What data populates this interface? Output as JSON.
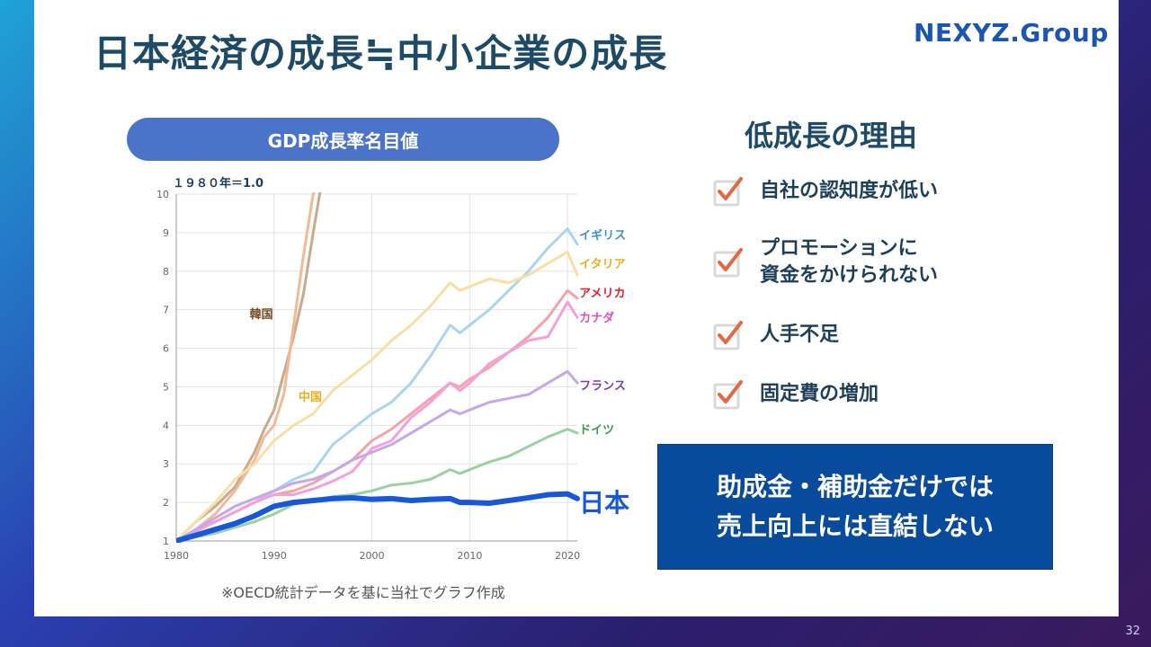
{
  "title": "日本経済の成長≒中小企業の成長",
  "logo": "NEXYZ.Group",
  "page_number": "32",
  "chart_pill": "GDP成長率名目値",
  "source_note": "※OECD統計データを基に当社でグラフ作成",
  "reasons_title": "低成長の理由",
  "reasons": [
    "自社の認知度が低い",
    "プロモーションに\n資金をかけられない",
    "人手不足",
    "固定費の増加"
  ],
  "note_box": "助成金・補助金だけでは\n売上向上には直結しない",
  "colors": {
    "title": "#1d4a66",
    "logo": "#1a55b0",
    "pill": "#4b73c9",
    "note_box": "#084a9b",
    "check": "#e06a45"
  },
  "icons": [
    "checkbox-checked-icon"
  ],
  "chart_data": {
    "type": "line",
    "title": "GDP成長率名目値",
    "subtitle": "１９８０年＝1.0",
    "xlabel": "",
    "ylabel": "",
    "xlim": [
      1980,
      2021
    ],
    "ylim": [
      1,
      10
    ],
    "xticks": [
      1980,
      1990,
      2000,
      2010,
      2020
    ],
    "yticks": [
      1,
      2,
      3,
      4,
      5,
      6,
      7,
      8,
      9,
      10
    ],
    "grid": true,
    "series": [
      {
        "name": "韓国",
        "color": "#c8aa8c",
        "width": 3,
        "x": [
          1980,
          1982,
          1984,
          1986,
          1988,
          1989,
          1990,
          1992,
          1993,
          1994,
          1995
        ],
        "y": [
          1.0,
          1.5,
          1.9,
          2.4,
          3.3,
          3.9,
          4.4,
          6.3,
          7.4,
          9.0,
          10.5
        ]
      },
      {
        "name": "中国",
        "color": "#f5b895",
        "width": 3,
        "x": [
          1980,
          1982,
          1984,
          1986,
          1988,
          1989,
          1990,
          1991,
          1992,
          1993,
          1994,
          1995
        ],
        "y": [
          1.0,
          1.3,
          1.7,
          2.3,
          3.1,
          3.7,
          4.0,
          4.8,
          6.6,
          8.4,
          10.0,
          10.5
        ]
      },
      {
        "name": "イギリス",
        "color": "#a8d5ef",
        "width": 3,
        "x": [
          1980,
          1982,
          1984,
          1986,
          1988,
          1990,
          1992,
          1994,
          1996,
          1998,
          2000,
          2002,
          2004,
          2006,
          2008,
          2009,
          2010,
          2012,
          2014,
          2016,
          2018,
          2020,
          2021
        ],
        "y": [
          1.0,
          1.3,
          1.5,
          1.75,
          2.0,
          2.3,
          2.6,
          2.8,
          3.5,
          3.9,
          4.3,
          4.6,
          5.1,
          5.8,
          6.6,
          6.4,
          6.6,
          7.0,
          7.5,
          8.0,
          8.6,
          9.1,
          8.7
        ]
      },
      {
        "name": "イタリア",
        "color": "#f9dea6",
        "width": 3,
        "x": [
          1980,
          1982,
          1984,
          1986,
          1988,
          1990,
          1992,
          1994,
          1996,
          1998,
          2000,
          2002,
          2004,
          2006,
          2008,
          2009,
          2010,
          2012,
          2014,
          2016,
          2018,
          2020,
          2021
        ],
        "y": [
          1.0,
          1.5,
          2.0,
          2.6,
          3.0,
          3.6,
          4.0,
          4.3,
          4.9,
          5.3,
          5.7,
          6.2,
          6.6,
          7.1,
          7.7,
          7.5,
          7.6,
          7.8,
          7.7,
          7.9,
          8.2,
          8.5,
          7.9
        ]
      },
      {
        "name": "アメリカ",
        "color": "#f5a3a8",
        "width": 3,
        "x": [
          1980,
          1982,
          1984,
          1986,
          1988,
          1990,
          1992,
          1994,
          1996,
          1998,
          2000,
          2002,
          2004,
          2006,
          2008,
          2009,
          2010,
          2012,
          2014,
          2016,
          2018,
          2020,
          2021
        ],
        "y": [
          1.0,
          1.25,
          1.5,
          1.75,
          2.0,
          2.2,
          2.3,
          2.5,
          2.8,
          3.1,
          3.6,
          3.9,
          4.3,
          4.7,
          5.1,
          5.0,
          5.2,
          5.5,
          5.9,
          6.3,
          6.8,
          7.5,
          7.3
        ]
      },
      {
        "name": "カナダ",
        "color": "#f4a0d9",
        "width": 3,
        "x": [
          1980,
          1982,
          1984,
          1986,
          1988,
          1990,
          1992,
          1994,
          1996,
          1998,
          2000,
          2002,
          2004,
          2006,
          2008,
          2009,
          2010,
          2012,
          2014,
          2016,
          2018,
          2020,
          2021
        ],
        "y": [
          1.0,
          1.25,
          1.5,
          1.75,
          2.0,
          2.2,
          2.2,
          2.35,
          2.55,
          2.8,
          3.4,
          3.6,
          4.2,
          4.6,
          5.1,
          4.9,
          5.1,
          5.6,
          5.9,
          6.2,
          6.3,
          7.2,
          6.8
        ]
      },
      {
        "name": "フランス",
        "color": "#c4a8ea",
        "width": 3,
        "x": [
          1980,
          1982,
          1984,
          1986,
          1988,
          1990,
          1992,
          1994,
          1996,
          1998,
          2000,
          2002,
          2004,
          2006,
          2008,
          2009,
          2010,
          2012,
          2014,
          2016,
          2018,
          2020,
          2021
        ],
        "y": [
          1.0,
          1.3,
          1.6,
          1.9,
          2.1,
          2.3,
          2.5,
          2.6,
          2.8,
          3.1,
          3.3,
          3.5,
          3.8,
          4.1,
          4.4,
          4.3,
          4.4,
          4.6,
          4.7,
          4.8,
          5.1,
          5.4,
          5.1
        ]
      },
      {
        "name": "ドイツ",
        "color": "#9ad1a3",
        "width": 3,
        "x": [
          1980,
          1982,
          1984,
          1986,
          1988,
          1990,
          1992,
          1994,
          1996,
          1998,
          2000,
          2002,
          2004,
          2006,
          2008,
          2009,
          2010,
          2012,
          2014,
          2016,
          2018,
          2020,
          2021
        ],
        "y": [
          1.0,
          1.1,
          1.2,
          1.35,
          1.5,
          1.7,
          1.95,
          2.05,
          2.15,
          2.2,
          2.3,
          2.45,
          2.5,
          2.6,
          2.85,
          2.75,
          2.85,
          3.05,
          3.2,
          3.45,
          3.7,
          3.9,
          3.8
        ]
      },
      {
        "name": "日本",
        "color": "#1858d8",
        "width": 6,
        "x": [
          1980,
          1982,
          1984,
          1986,
          1988,
          1990,
          1992,
          1994,
          1996,
          1998,
          2000,
          2002,
          2004,
          2006,
          2008,
          2009,
          2010,
          2012,
          2014,
          2016,
          2018,
          2020,
          2021
        ],
        "y": [
          1.0,
          1.15,
          1.3,
          1.45,
          1.65,
          1.9,
          2.0,
          2.05,
          2.1,
          2.12,
          2.08,
          2.1,
          2.05,
          2.08,
          2.1,
          2.0,
          2.0,
          1.98,
          2.05,
          2.12,
          2.2,
          2.22,
          2.1
        ]
      }
    ],
    "labels": [
      {
        "text": "イギリス",
        "color": "#3a8fd6",
        "x": 2021.2,
        "y": 8.95
      },
      {
        "text": "イタリア",
        "color": "#e8b020",
        "x": 2021.2,
        "y": 8.2
      },
      {
        "text": "アメリカ",
        "color": "#e02030",
        "x": 2021.2,
        "y": 7.45
      },
      {
        "text": "カナダ",
        "color": "#e050b0",
        "x": 2021.2,
        "y": 6.8
      },
      {
        "text": "フランス",
        "color": "#7a3cb0",
        "x": 2021.2,
        "y": 5.05
      },
      {
        "text": "ドイツ",
        "color": "#3a9a48",
        "x": 2021.2,
        "y": 3.9
      },
      {
        "text": "日本",
        "color": "#1858d8",
        "x": 2021.2,
        "y": 2.0
      },
      {
        "text": "韓国",
        "color": "#7a4a20",
        "x": 1987.5,
        "y": 6.9
      },
      {
        "text": "中国",
        "color": "#e8b020",
        "x": 1992.5,
        "y": 4.75
      }
    ]
  }
}
